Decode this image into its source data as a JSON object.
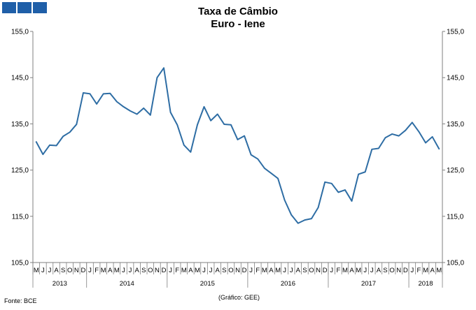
{
  "header": {
    "logo_icon": "gee-logo-icon"
  },
  "footer": {
    "source": "Fonte: BCE",
    "credit": "(Gráfico:  GEE)"
  },
  "chart_data": {
    "type": "line",
    "title": "Taxa de Câmbio",
    "subtitle": "Euro - Iene",
    "ylim": [
      105,
      155
    ],
    "yticks": [
      "105,0",
      "115,0",
      "125,0",
      "135,0",
      "145,0",
      "155,0"
    ],
    "ytick_values": [
      105,
      115,
      125,
      135,
      145,
      155
    ],
    "color": "#2e6da4",
    "grid": false,
    "months": [
      "M",
      "J",
      "J",
      "A",
      "S",
      "O",
      "N",
      "D",
      "J",
      "F",
      "M",
      "A",
      "M",
      "J",
      "J",
      "A",
      "S",
      "O",
      "N",
      "D",
      "J",
      "F",
      "M",
      "A",
      "M",
      "J",
      "J",
      "A",
      "S",
      "O",
      "N",
      "D",
      "J",
      "F",
      "M",
      "A",
      "M",
      "J",
      "J",
      "A",
      "S",
      "O",
      "N",
      "D",
      "J",
      "F",
      "M",
      "A",
      "M",
      "J",
      "J",
      "A",
      "S",
      "O",
      "N",
      "D",
      "J",
      "F",
      "M",
      "A",
      "M"
    ],
    "years": [
      {
        "label": "2013",
        "start": 0,
        "count": 8
      },
      {
        "label": "2014",
        "start": 8,
        "count": 12
      },
      {
        "label": "2015",
        "start": 20,
        "count": 12
      },
      {
        "label": "2016",
        "start": 32,
        "count": 12
      },
      {
        "label": "2017",
        "start": 44,
        "count": 12
      },
      {
        "label": "2018",
        "start": 56,
        "count": 5
      }
    ],
    "series": [
      {
        "values": [
          131.1,
          128.4,
          130.4,
          130.3,
          132.3,
          133.2,
          134.9,
          141.7,
          141.5,
          139.3,
          141.5,
          141.6,
          139.8,
          138.7,
          137.8,
          137.1,
          138.4,
          136.9,
          145.0,
          147.1,
          137.5,
          134.8,
          130.4,
          128.9,
          134.8,
          138.7,
          135.7,
          137.1,
          134.9,
          134.8,
          131.6,
          132.4,
          128.3,
          127.4,
          125.4,
          124.3,
          123.2,
          118.5,
          115.3,
          113.5,
          114.2,
          114.5,
          116.9,
          122.4,
          122.1,
          120.2,
          120.7,
          118.3,
          124.1,
          124.6,
          129.5,
          129.7,
          132.0,
          132.8,
          132.4,
          133.6,
          135.3,
          133.3,
          130.9,
          132.2,
          129.6
        ]
      }
    ]
  }
}
